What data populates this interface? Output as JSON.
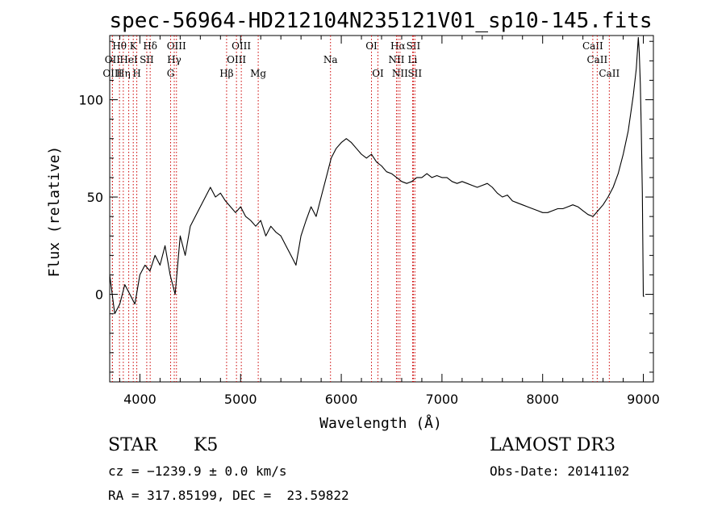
{
  "figure": {
    "title": "spec-56964-HD212104N235121V01_sp10-145.fits"
  },
  "footer": {
    "object_class": "STAR",
    "subclass": "K5",
    "survey": "LAMOST DR3",
    "cz_text": "cz = −1239.9 ± 0.0 km/s",
    "obs_date_text": "Obs-Date: 20141102",
    "coords_text": "RA = 317.85199, DEC =  23.59822"
  },
  "colors": {
    "spectrum": "#000000",
    "line_marker": "#cc0000",
    "axis": "#000000"
  },
  "chart_data": {
    "type": "line",
    "title": "spec-56964-HD212104N235121V01_sp10-145.fits",
    "xlabel": "Wavelength (Å)",
    "ylabel": "Flux (relative)",
    "xlim": [
      3700,
      9100
    ],
    "ylim": [
      -45,
      133
    ],
    "x_ticks": [
      4000,
      5000,
      6000,
      7000,
      8000,
      9000
    ],
    "y_ticks": [
      0,
      50,
      100
    ],
    "grid": false,
    "series": [
      {
        "x": [
          3700,
          3750,
          3800,
          3850,
          3900,
          3950,
          4000,
          4050,
          4100,
          4150,
          4200,
          4250,
          4300,
          4350,
          4400,
          4450,
          4500,
          4550,
          4600,
          4650,
          4700,
          4750,
          4800,
          4850,
          4900,
          4950,
          5000,
          5050,
          5100,
          5150,
          5200,
          5250,
          5300,
          5350,
          5400,
          5450,
          5500,
          5550,
          5600,
          5650,
          5700,
          5750,
          5800,
          5850,
          5900,
          5950,
          6000,
          6050,
          6100,
          6150,
          6200,
          6250,
          6300,
          6350,
          6400,
          6450,
          6500,
          6550,
          6600,
          6650,
          6700,
          6750,
          6800,
          6850,
          6900,
          6950,
          7000,
          7050,
          7100,
          7150,
          7200,
          7250,
          7300,
          7350,
          7400,
          7450,
          7500,
          7550,
          7600,
          7650,
          7700,
          7750,
          7800,
          7850,
          7900,
          7950,
          8000,
          8050,
          8100,
          8150,
          8200,
          8250,
          8300,
          8350,
          8400,
          8450,
          8500,
          8550,
          8600,
          8650,
          8700,
          8750,
          8800,
          8850,
          8900,
          8930,
          8950,
          8960,
          8970,
          8980,
          8990,
          9000,
          9010
        ],
        "y": [
          10,
          -10,
          -5,
          5,
          0,
          -5,
          10,
          15,
          12,
          20,
          15,
          25,
          10,
          0,
          30,
          20,
          35,
          40,
          45,
          50,
          55,
          50,
          52,
          48,
          45,
          42,
          45,
          40,
          38,
          35,
          38,
          30,
          35,
          32,
          30,
          25,
          20,
          15,
          30,
          38,
          45,
          40,
          50,
          60,
          70,
          75,
          78,
          80,
          78,
          75,
          72,
          70,
          72,
          68,
          66,
          63,
          62,
          60,
          58,
          57,
          58,
          60,
          60,
          62,
          60,
          61,
          60,
          60,
          58,
          57,
          58,
          57,
          56,
          55,
          56,
          57,
          55,
          52,
          50,
          51,
          48,
          47,
          46,
          45,
          44,
          43,
          42,
          42,
          43,
          44,
          44,
          45,
          46,
          45,
          43,
          41,
          40,
          43,
          46,
          50,
          55,
          62,
          72,
          84,
          102,
          116,
          132,
          124,
          108,
          84,
          52,
          -1,
          -1
        ]
      }
    ],
    "line_markers": [
      {
        "label": "Hθ",
        "x": 3797,
        "row": 1
      },
      {
        "label": "OII",
        "x": 3727,
        "row": 2
      },
      {
        "label": "OIII",
        "x": 3727,
        "row": 3
      },
      {
        "label": "K",
        "x": 3934,
        "row": 1
      },
      {
        "label": "HeI",
        "x": 3889,
        "row": 2
      },
      {
        "label": "Hη",
        "x": 3835,
        "row": 3
      },
      {
        "label": "H",
        "x": 3969,
        "row": 3
      },
      {
        "label": "SII",
        "x": 4068,
        "row": 2
      },
      {
        "label": "Hδ",
        "x": 4102,
        "row": 1
      },
      {
        "label": "OIII",
        "x": 4363,
        "row": 1
      },
      {
        "label": "Hγ",
        "x": 4341,
        "row": 2
      },
      {
        "label": "G",
        "x": 4305,
        "row": 3
      },
      {
        "label": "Hβ",
        "x": 4861,
        "row": 3
      },
      {
        "label": "OIII",
        "x": 5007,
        "row": 1
      },
      {
        "label": "OIII",
        "x": 4959,
        "row": 2
      },
      {
        "label": "Mg",
        "x": 5175,
        "row": 3
      },
      {
        "label": "Na",
        "x": 5893,
        "row": 2
      },
      {
        "label": "OI",
        "x": 6300,
        "row": 1
      },
      {
        "label": "OI",
        "x": 6364,
        "row": 3
      },
      {
        "label": "Hα",
        "x": 6563,
        "row": 1
      },
      {
        "label": "SII",
        "x": 6716,
        "row": 1
      },
      {
        "label": "NII",
        "x": 6548,
        "row": 2
      },
      {
        "label": "Li",
        "x": 6708,
        "row": 2
      },
      {
        "label": "NII",
        "x": 6583,
        "row": 3
      },
      {
        "label": "SII",
        "x": 6731,
        "row": 3
      },
      {
        "label": "CaII",
        "x": 8498,
        "row": 1
      },
      {
        "label": "CaII",
        "x": 8542,
        "row": 2
      },
      {
        "label": "CaII",
        "x": 8662,
        "row": 3
      }
    ]
  }
}
